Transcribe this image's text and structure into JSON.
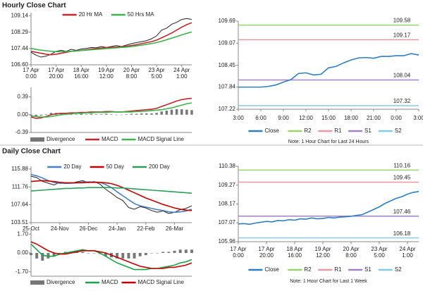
{
  "chart_data": [
    {
      "type": "line",
      "title": "Hourly Close Chart",
      "legend": "top",
      "categories": [
        "17 Apr 0:00",
        null,
        null,
        null,
        null,
        "17 Apr 20:00",
        null,
        null,
        null,
        null,
        "18 Apr 16:00",
        null,
        null,
        null,
        null,
        "19 Apr 12:00",
        null,
        null,
        null,
        null,
        "20 Apr 8:00",
        null,
        null,
        null,
        null,
        "23 Apr 5:00",
        null,
        null,
        null,
        null,
        "24 Apr 1:00",
        null,
        null
      ],
      "ylim": [
        106.6,
        109.3
      ],
      "yticks": [
        {
          "value": 106.6,
          "label": "106.60"
        },
        107.44,
        108.29,
        109.14
      ],
      "series": [
        {
          "color": "#222222",
          "values": [
            107.25,
            107.1,
            107.0,
            107.05,
            107.15,
            107.3,
            107.35,
            107.3,
            107.4,
            107.35,
            107.42,
            107.45,
            107.5,
            107.48,
            107.55,
            107.5,
            107.55,
            107.6,
            107.55,
            107.62,
            107.7,
            107.75,
            107.8,
            107.85,
            107.95,
            108.1,
            108.4,
            108.5,
            108.7,
            108.8,
            108.95,
            109.0,
            108.95
          ]
        },
        {
          "name": "20 Hr MA",
          "color": "#c0282d",
          "values": [
            107.3,
            107.25,
            107.2,
            107.15,
            107.12,
            107.15,
            107.2,
            107.25,
            107.3,
            107.32,
            107.35,
            107.38,
            107.42,
            107.44,
            107.47,
            107.49,
            107.5,
            107.52,
            107.54,
            107.56,
            107.6,
            107.64,
            107.7,
            107.75,
            107.8,
            107.88,
            108.0,
            108.12,
            108.25,
            108.4,
            108.55,
            108.68,
            108.78
          ]
        },
        {
          "name": "50 Hrs MA",
          "color": "#3cb44b",
          "values": [
            107.45,
            107.4,
            107.36,
            107.33,
            107.3,
            107.28,
            107.28,
            107.29,
            107.3,
            107.32,
            107.34,
            107.36,
            107.38,
            107.4,
            107.42,
            107.44,
            107.46,
            107.48,
            107.5,
            107.52,
            107.55,
            107.58,
            107.62,
            107.66,
            107.7,
            107.75,
            107.82,
            107.9,
            107.98,
            108.06,
            108.15,
            108.23,
            108.3
          ]
        }
      ]
    },
    {
      "type": "line",
      "legend": "bottom",
      "ylim": [
        -0.39,
        0.6
      ],
      "yticks": [
        -0.39,
        {
          "value": 0,
          "label": "0.00"
        },
        0.39
      ],
      "series": [
        {
          "name": "Divergence",
          "type": "bar",
          "color": "#777777",
          "values": [
            -0.02,
            -0.04,
            -0.02,
            0.01,
            0.04,
            0.04,
            0.03,
            0.02,
            0.02,
            0.01,
            0.02,
            0.01,
            0.02,
            0.01,
            0.01,
            0.02,
            0.01,
            0.0,
            0.0,
            0.01,
            0.02,
            0.02,
            0.03,
            0.03,
            0.03,
            0.04,
            0.07,
            0.09,
            0.11,
            0.12,
            0.12,
            0.11,
            0.1
          ]
        },
        {
          "name": "MACD",
          "color": "#c0282d",
          "values": [
            -0.05,
            -0.08,
            -0.07,
            -0.04,
            0.0,
            0.02,
            0.03,
            0.03,
            0.04,
            0.04,
            0.05,
            0.05,
            0.06,
            0.06,
            0.06,
            0.07,
            0.07,
            0.06,
            0.06,
            0.07,
            0.08,
            0.09,
            0.1,
            0.11,
            0.12,
            0.14,
            0.18,
            0.22,
            0.26,
            0.3,
            0.33,
            0.35,
            0.36
          ]
        },
        {
          "name": "MACD Signal Line",
          "color": "#3cb44b",
          "values": [
            -0.03,
            -0.04,
            -0.05,
            -0.05,
            -0.04,
            -0.02,
            0.0,
            0.01,
            0.02,
            0.03,
            0.03,
            0.04,
            0.04,
            0.05,
            0.05,
            0.05,
            0.06,
            0.06,
            0.06,
            0.06,
            0.06,
            0.07,
            0.07,
            0.08,
            0.09,
            0.1,
            0.11,
            0.13,
            0.15,
            0.18,
            0.21,
            0.24,
            0.26
          ]
        }
      ]
    },
    {
      "type": "line",
      "legend": "bottom",
      "note": "Note: 1 Hour Chart for Last 24 Hours",
      "categories": [
        "3:00",
        null,
        null,
        "6:00",
        null,
        null,
        "9:00",
        null,
        null,
        "12:00",
        null,
        null,
        "15:00",
        null,
        null,
        "18:00",
        null,
        null,
        "21:00",
        null,
        null,
        "0:00",
        null,
        null,
        "3:00"
      ],
      "ylim": [
        107.22,
        109.69
      ],
      "yticks": [
        107.22,
        107.84,
        108.45,
        109.07,
        109.69
      ],
      "series": [
        {
          "name": "Close",
          "color": "#2e7fc1",
          "values": [
            107.84,
            107.84,
            107.84,
            107.84,
            107.86,
            107.9,
            107.98,
            108.05,
            108.22,
            108.24,
            108.18,
            108.2,
            108.38,
            108.42,
            108.52,
            108.6,
            108.66,
            108.67,
            108.65,
            108.7,
            108.7,
            108.72,
            108.72,
            108.78,
            108.74
          ]
        }
      ],
      "levels": [
        {
          "name": "R2",
          "value": 109.58,
          "color": "#9bd36b"
        },
        {
          "name": "R1",
          "value": 109.17,
          "color": "#e79aa5"
        },
        {
          "name": "S1",
          "value": 108.04,
          "color": "#a283c6"
        },
        {
          "name": "S2",
          "value": 107.32,
          "color": "#86cbe8"
        }
      ]
    },
    {
      "type": "line",
      "title": "Daily Close Chart",
      "legend": "top",
      "categories": [
        "25-Oct",
        null,
        null,
        null,
        null,
        "24-Nov",
        null,
        null,
        null,
        null,
        "26-Dec",
        null,
        null,
        null,
        null,
        "24-Jan",
        null,
        null,
        null,
        null,
        "22-Feb",
        null,
        null,
        null,
        null,
        "26-Mar",
        null,
        null,
        null
      ],
      "ylim": [
        103.51,
        116.5
      ],
      "yticks": [
        103.51,
        107.64,
        111.76,
        115.88
      ],
      "series": [
        {
          "color": "#222222",
          "values": [
            114.2,
            113.9,
            113.0,
            112.6,
            112.2,
            112.8,
            112.5,
            112.6,
            112.9,
            113.2,
            112.7,
            113.0,
            112.4,
            111.2,
            110.3,
            109.3,
            108.6,
            107.0,
            106.6,
            107.2,
            106.9,
            106.3,
            105.9,
            106.2,
            105.6,
            105.9,
            106.5,
            106.8,
            107.4
          ]
        },
        {
          "name": "20 Day",
          "color": "#4a7fc1",
          "values": [
            114.6,
            114.3,
            113.8,
            113.2,
            112.8,
            112.6,
            112.6,
            112.6,
            112.7,
            112.9,
            112.9,
            112.9,
            112.8,
            112.3,
            111.6,
            110.6,
            109.7,
            108.8,
            107.9,
            107.4,
            107.1,
            106.8,
            106.5,
            106.3,
            106.0,
            105.9,
            106.0,
            106.2,
            106.6
          ]
        },
        {
          "name": "50 Day",
          "color": "#c00000",
          "values": [
            113.0,
            113.1,
            113.2,
            113.1,
            113.0,
            112.8,
            112.7,
            112.7,
            112.7,
            112.7,
            112.8,
            112.8,
            112.8,
            112.7,
            112.5,
            112.1,
            111.6,
            111.0,
            110.4,
            109.8,
            109.2,
            108.7,
            108.2,
            107.7,
            107.3,
            106.9,
            106.6,
            106.4,
            106.3
          ]
        },
        {
          "name": "200 Day",
          "color": "#2aa05a",
          "values": [
            110.8,
            110.9,
            111.0,
            111.1,
            111.2,
            111.3,
            111.4,
            111.4,
            111.5,
            111.5,
            111.6,
            111.6,
            111.6,
            111.6,
            111.6,
            111.5,
            111.5,
            111.4,
            111.3,
            111.2,
            111.1,
            111.0,
            110.9,
            110.8,
            110.7,
            110.6,
            110.5,
            110.4,
            110.3
          ]
        }
      ]
    },
    {
      "type": "line",
      "legend": "bottom",
      "ylim": [
        -2.1,
        2.1
      ],
      "yticks": [
        {
          "value": -1.7,
          "label": "-1.70"
        },
        {
          "value": 0,
          "label": "0.00"
        },
        {
          "value": 1.7,
          "label": "1.70"
        }
      ],
      "series": [
        {
          "name": "Divergence",
          "type": "bar",
          "color": "#777777",
          "values": [
            -0.2,
            -0.5,
            -0.7,
            -0.5,
            -0.3,
            0.0,
            0.1,
            0.1,
            0.1,
            0.1,
            0.0,
            0.0,
            -0.1,
            -0.3,
            -0.4,
            -0.5,
            -0.5,
            -0.5,
            -0.5,
            -0.3,
            -0.2,
            0.0,
            0.0,
            0.1,
            0.1,
            0.2,
            0.3,
            0.3,
            0.3
          ]
        },
        {
          "name": "MACD",
          "color": "#1aa34a",
          "values": [
            0.8,
            0.3,
            -0.2,
            -0.3,
            -0.3,
            -0.1,
            0.0,
            0.1,
            0.2,
            0.3,
            0.2,
            0.2,
            0.0,
            -0.3,
            -0.6,
            -0.9,
            -1.1,
            -1.3,
            -1.5,
            -1.5,
            -1.5,
            -1.4,
            -1.4,
            -1.3,
            -1.2,
            -1.1,
            -0.9,
            -0.8,
            -0.6
          ]
        },
        {
          "name": "MACD Signal Line",
          "color": "#c00000",
          "values": [
            1.0,
            0.8,
            0.5,
            0.2,
            0.0,
            -0.1,
            -0.1,
            0.0,
            0.1,
            0.2,
            0.2,
            0.2,
            0.1,
            0.0,
            -0.2,
            -0.4,
            -0.6,
            -0.8,
            -1.0,
            -1.2,
            -1.3,
            -1.4,
            -1.4,
            -1.4,
            -1.3,
            -1.3,
            -1.2,
            -1.1,
            -0.9
          ]
        }
      ]
    },
    {
      "type": "line",
      "legend": "bottom",
      "note": "Note: 1 Hour Chart for Last 1 Week",
      "categories": [
        "17 Apr 0:00",
        null,
        null,
        null,
        null,
        "17 Apr 20:00",
        null,
        null,
        null,
        null,
        "18 Apr 16:00",
        null,
        null,
        null,
        null,
        "19 Apr 12:00",
        null,
        null,
        null,
        null,
        "20 Apr 8:00",
        null,
        null,
        null,
        null,
        "23 Apr 5:00",
        null,
        null,
        null,
        null,
        "24 Apr 1:00",
        null,
        null
      ],
      "ylim": [
        105.96,
        110.38
      ],
      "yticks": [
        105.96,
        107.07,
        108.17,
        109.27,
        110.38
      ],
      "series": [
        {
          "name": "Close",
          "color": "#2e7fc1",
          "values": [
            107.0,
            107.02,
            106.98,
            107.05,
            107.1,
            107.15,
            107.12,
            107.2,
            107.18,
            107.25,
            107.22,
            107.3,
            107.28,
            107.35,
            107.3,
            107.32,
            107.38,
            107.35,
            107.4,
            107.42,
            107.45,
            107.5,
            107.55,
            107.7,
            107.85,
            108.0,
            108.2,
            108.35,
            108.5,
            108.6,
            108.75,
            108.85,
            108.9
          ]
        }
      ],
      "levels": [
        {
          "name": "R2",
          "value": 110.16,
          "color": "#9bd36b"
        },
        {
          "name": "R1",
          "value": 109.45,
          "color": "#e79aa5"
        },
        {
          "name": "S1",
          "value": 107.46,
          "color": "#a283c6"
        },
        {
          "name": "S2",
          "value": 106.18,
          "color": "#86cbe8"
        }
      ]
    }
  ]
}
